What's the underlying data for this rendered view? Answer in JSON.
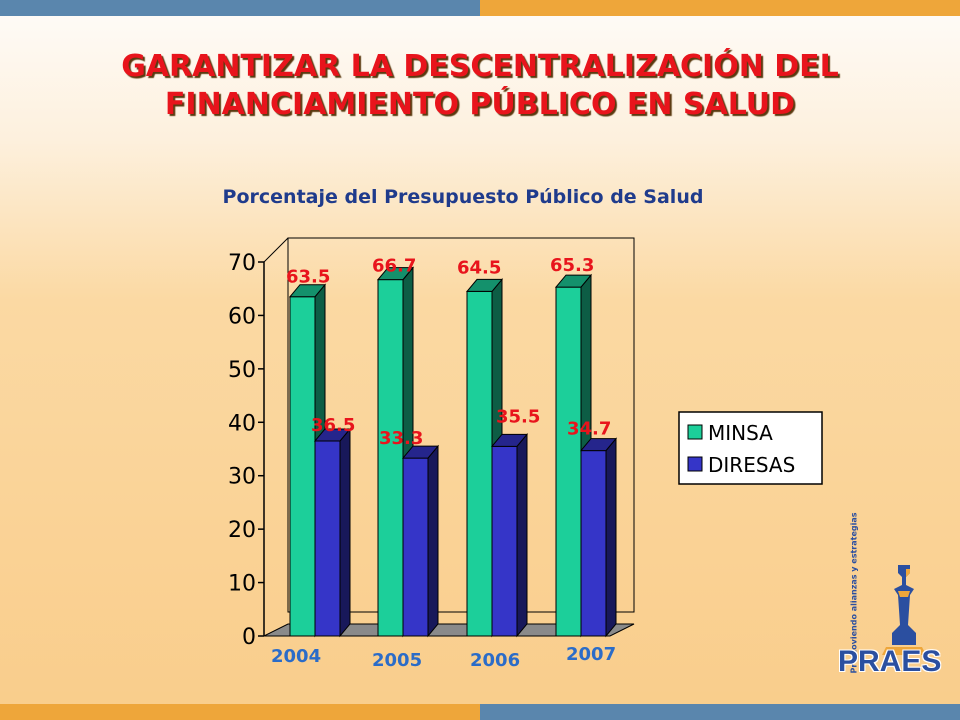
{
  "header": {
    "title_line1": "GARANTIZAR LA DESCENTRALIZACIÓN DEL",
    "title_line2": "FINANCIAMIENTO PÚBLICO EN SALUD"
  },
  "colors": {
    "top_band_left": "#5a86ad",
    "top_band_right": "#eea63a",
    "title_red": "#e8141c",
    "minsa": "#1ccf9a",
    "diresas": "#3535c8",
    "data_label": "#e8141c",
    "year_label": "#2b6cc8"
  },
  "chart_data": {
    "type": "bar",
    "title": "Porcentaje del Presupuesto Público de Salud",
    "categories": [
      "2004",
      "2005",
      "2006",
      "2007"
    ],
    "series": [
      {
        "name": "MINSA",
        "values": [
          63.5,
          66.7,
          64.5,
          65.3
        ]
      },
      {
        "name": "DIRESAS",
        "values": [
          36.5,
          33.3,
          35.5,
          34.7
        ]
      }
    ],
    "ylim": [
      0,
      70
    ],
    "yticks": [
      0,
      10,
      20,
      30,
      40,
      50,
      60,
      70
    ],
    "ytick_labels": [
      "0",
      "10",
      "20",
      "30",
      "40",
      "50",
      "60",
      "70"
    ],
    "data_labels": {
      "MINSA": [
        "63.5",
        "66.7",
        "64.5",
        "65.3"
      ],
      "DIRESAS": [
        "36.5",
        "33.3",
        "35.5",
        "34.7"
      ]
    },
    "legend_position": "right",
    "style": "3d",
    "grid": false
  },
  "logo": {
    "name": "PRAES",
    "tagline": "Promoviendo alianzas y estrategias"
  }
}
